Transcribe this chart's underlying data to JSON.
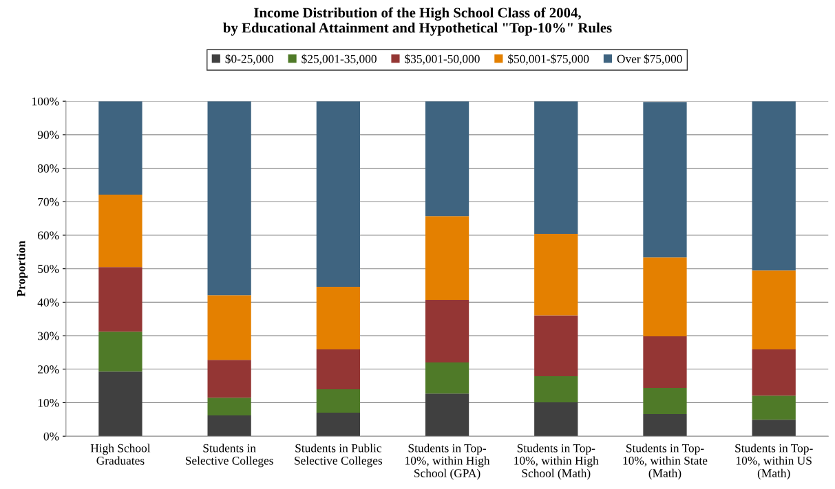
{
  "chart_data": {
    "type": "bar",
    "stacked": true,
    "title": "Income Distribution of the High School Class of 2004,\nby Educational Attainment and Hypothetical \"Top-10%\" Rules",
    "ylabel": "Proportion",
    "categories": [
      "High School\nGraduates",
      "Students in\nSelective Colleges",
      "Students in Public\nSelective Colleges",
      "Students in Top-\n10%, within High\nSchool (GPA)",
      "Students in Top-\n10%, within High\nSchool (Math)",
      "Students in Top-\n10%, within State\n(Math)",
      "Students in Top-\n10%, within US\n(Math)"
    ],
    "series": [
      {
        "name": "$0-25,000",
        "color": "#404040",
        "values": [
          19.3,
          6.2,
          7.0,
          12.7,
          10.1,
          6.6,
          4.9
        ]
      },
      {
        "name": "$25,001-35,000",
        "color": "#4f7a28",
        "values": [
          11.9,
          5.3,
          7.0,
          9.3,
          7.8,
          7.8,
          7.2
        ]
      },
      {
        "name": "$35,001-50,000",
        "color": "#943634",
        "values": [
          19.3,
          11.3,
          11.9,
          18.7,
          18.2,
          15.4,
          13.8
        ]
      },
      {
        "name": "$50,001-$75,000",
        "color": "#e48000",
        "values": [
          21.6,
          19.3,
          18.7,
          25.0,
          24.3,
          23.6,
          23.6
        ]
      },
      {
        "name": "Over $75,000",
        "color": "#3f6480",
        "values": [
          27.9,
          57.9,
          55.4,
          34.3,
          39.6,
          46.4,
          50.5
        ]
      }
    ],
    "ylim": [
      0,
      100
    ],
    "yticks": [
      {
        "value": 0,
        "label": "0%"
      },
      {
        "value": 10,
        "label": "10%"
      },
      {
        "value": 20,
        "label": "20%"
      },
      {
        "value": 30,
        "label": "30%"
      },
      {
        "value": 40,
        "label": "40%"
      },
      {
        "value": 50,
        "label": "50%"
      },
      {
        "value": 60,
        "label": "60%"
      },
      {
        "value": 70,
        "label": "70%"
      },
      {
        "value": 80,
        "label": "80%"
      },
      {
        "value": 90,
        "label": "90%"
      },
      {
        "value": 100,
        "label": "100%"
      }
    ],
    "grid": "y",
    "legend": "top"
  }
}
